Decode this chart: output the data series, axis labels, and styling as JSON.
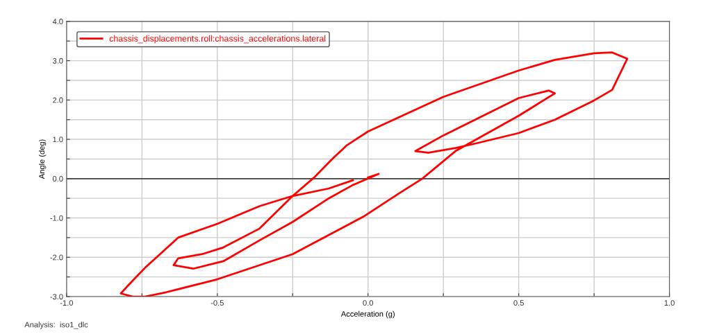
{
  "chart_data": {
    "type": "line",
    "xlabel": "Acceleration (g)",
    "ylabel": "Angle (deg)",
    "annotations": [
      "Analysis:  iso1_dlc"
    ],
    "series": [
      {
        "name": "chassis_displacements.roll:chassis_accelerations.lateral",
        "color": "#ff0000",
        "x": [
          0.0,
          0.035,
          -0.05,
          -0.13,
          -0.25,
          -0.36,
          -0.48,
          -0.58,
          -0.645,
          -0.63,
          -0.55,
          -0.48,
          -0.36,
          -0.25,
          -0.18,
          -0.12,
          -0.07,
          0.0,
          0.25,
          0.5,
          0.62,
          0.75,
          0.81,
          0.86,
          0.81,
          0.75,
          0.62,
          0.5,
          0.36,
          0.29,
          0.2,
          0.157,
          0.25,
          0.5,
          0.6,
          0.62,
          0.5,
          0.29,
          0.18,
          0.1,
          -0.016,
          -0.25,
          -0.5,
          -0.67,
          -0.74,
          -0.78,
          -0.82,
          -0.8,
          -0.74,
          -0.63,
          -0.5,
          -0.36,
          -0.25,
          -0.13,
          -0.05
        ],
        "values": [
          0.03,
          0.12,
          -0.16,
          -0.5,
          -1.1,
          -1.57,
          -2.1,
          -2.29,
          -2.2,
          -2.03,
          -1.92,
          -1.75,
          -1.27,
          -0.44,
          0.02,
          0.49,
          0.85,
          1.2,
          2.08,
          2.75,
          3.02,
          3.19,
          3.21,
          3.05,
          2.26,
          1.99,
          1.5,
          1.16,
          0.9,
          0.78,
          0.66,
          0.7,
          1.1,
          2.05,
          2.24,
          2.17,
          1.6,
          0.7,
          0.0,
          -0.39,
          -0.97,
          -1.92,
          -2.56,
          -2.89,
          -3.0,
          -3.0,
          -2.92,
          -2.75,
          -2.27,
          -1.5,
          -1.15,
          -0.7,
          -0.44,
          -0.25,
          -0.04
        ]
      }
    ],
    "xlim": [
      -1.0,
      1.0
    ],
    "ylim": [
      -3.0,
      4.0
    ],
    "xticks": [
      {
        "value": -1.0,
        "label": "-1.0"
      },
      {
        "value": -0.75,
        "label": null
      },
      {
        "value": -0.5,
        "label": "-0.5"
      },
      {
        "value": -0.25,
        "label": null
      },
      {
        "value": 0.0,
        "label": "0.0"
      },
      {
        "value": 0.25,
        "label": null
      },
      {
        "value": 0.5,
        "label": "0.5"
      },
      {
        "value": 0.75,
        "label": null
      },
      {
        "value": 1.0,
        "label": "1.0"
      }
    ],
    "yticks": [
      {
        "value": -3.0,
        "label": "-3.0"
      },
      {
        "value": -2.5,
        "label": null
      },
      {
        "value": -2.0,
        "label": "-2.0"
      },
      {
        "value": -1.5,
        "label": null
      },
      {
        "value": -1.0,
        "label": "-1.0"
      },
      {
        "value": -0.5,
        "label": null
      },
      {
        "value": 0.0,
        "label": "0.0"
      },
      {
        "value": 0.5,
        "label": null
      },
      {
        "value": 1.0,
        "label": "1.0"
      },
      {
        "value": 1.5,
        "label": null
      },
      {
        "value": 2.0,
        "label": "2.0"
      },
      {
        "value": 2.5,
        "label": null
      },
      {
        "value": 3.0,
        "label": "3.0"
      },
      {
        "value": 3.5,
        "label": null
      },
      {
        "value": 4.0,
        "label": "4.0"
      }
    ],
    "ref_lines": [
      {
        "axis": "y",
        "value": 0.0,
        "color": "#404040"
      }
    ],
    "grid": true,
    "legend": "top left",
    "marker": "none",
    "line_style": "solid"
  }
}
